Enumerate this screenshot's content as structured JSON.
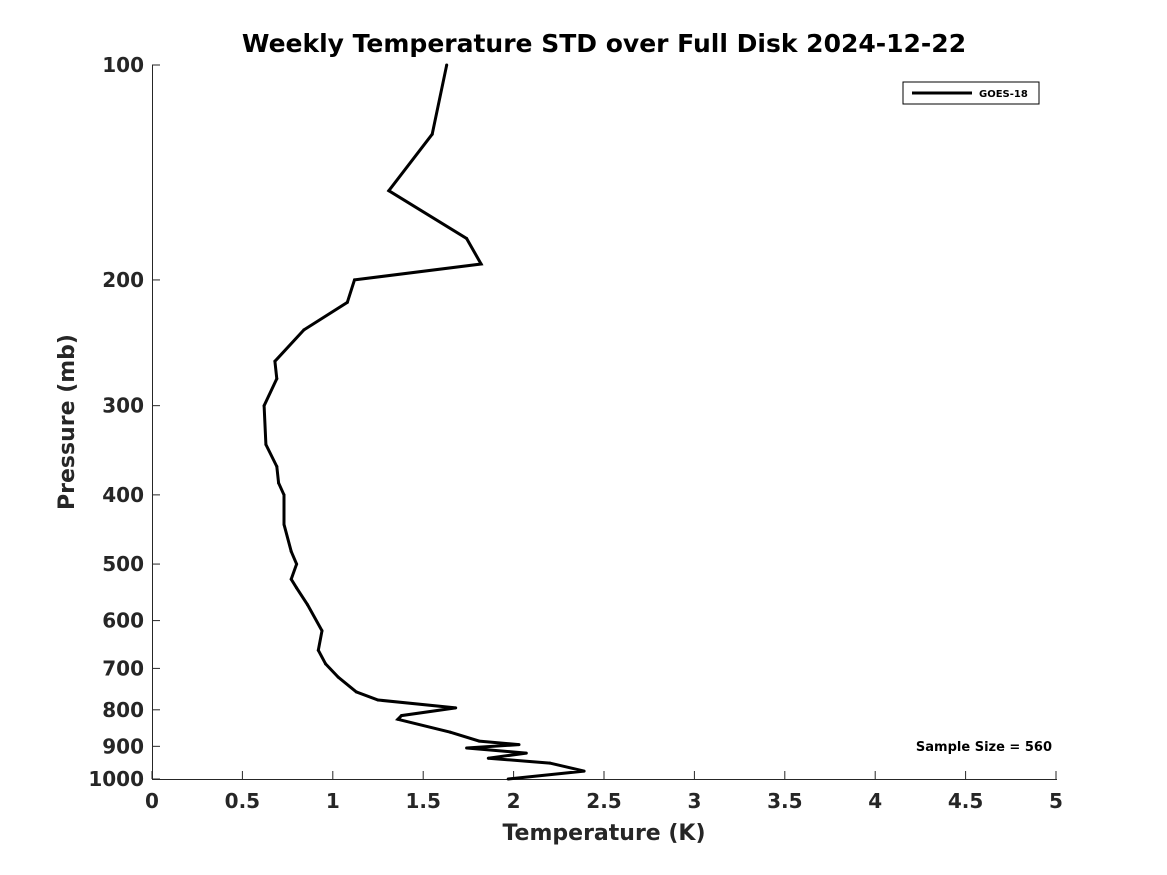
{
  "chart_data": {
    "type": "line",
    "title": "Weekly Temperature STD over Full Disk 2024-12-22",
    "xlabel": "Temperature (K)",
    "ylabel": "Pressure (mb)",
    "xlim": [
      0,
      5
    ],
    "ylim": [
      100,
      1000
    ],
    "y_scale": "log",
    "y_reversed": true,
    "xticks": [
      0,
      0.5,
      1,
      1.5,
      2,
      2.5,
      3,
      3.5,
      4,
      4.5,
      5
    ],
    "xtick_labels": [
      "0",
      "0.5",
      "1",
      "1.5",
      "2",
      "2.5",
      "3",
      "3.5",
      "4",
      "4.5",
      "5"
    ],
    "yticks": [
      100,
      200,
      300,
      400,
      500,
      600,
      700,
      800,
      900,
      1000
    ],
    "ytick_labels": [
      "100",
      "200",
      "300",
      "400",
      "500",
      "600",
      "700",
      "800",
      "900",
      "1000"
    ],
    "legend_position": "top-right",
    "grid": false,
    "annotation": "Sample Size = 560",
    "series": [
      {
        "name": "GOES-18",
        "color": "#000000",
        "points": [
          {
            "x": 1.63,
            "p": 100
          },
          {
            "x": 1.55,
            "p": 125
          },
          {
            "x": 1.31,
            "p": 150
          },
          {
            "x": 1.74,
            "p": 175
          },
          {
            "x": 1.82,
            "p": 190
          },
          {
            "x": 1.12,
            "p": 200
          },
          {
            "x": 1.08,
            "p": 215
          },
          {
            "x": 0.84,
            "p": 235
          },
          {
            "x": 0.68,
            "p": 260
          },
          {
            "x": 0.69,
            "p": 275
          },
          {
            "x": 0.62,
            "p": 300
          },
          {
            "x": 0.63,
            "p": 340
          },
          {
            "x": 0.69,
            "p": 365
          },
          {
            "x": 0.7,
            "p": 385
          },
          {
            "x": 0.73,
            "p": 400
          },
          {
            "x": 0.73,
            "p": 440
          },
          {
            "x": 0.77,
            "p": 480
          },
          {
            "x": 0.8,
            "p": 500
          },
          {
            "x": 0.77,
            "p": 525
          },
          {
            "x": 0.8,
            "p": 540
          },
          {
            "x": 0.86,
            "p": 570
          },
          {
            "x": 0.94,
            "p": 620
          },
          {
            "x": 0.92,
            "p": 660
          },
          {
            "x": 0.96,
            "p": 690
          },
          {
            "x": 1.03,
            "p": 720
          },
          {
            "x": 1.13,
            "p": 755
          },
          {
            "x": 1.25,
            "p": 775
          },
          {
            "x": 1.68,
            "p": 795
          },
          {
            "x": 1.38,
            "p": 815
          },
          {
            "x": 1.36,
            "p": 825
          },
          {
            "x": 1.65,
            "p": 860
          },
          {
            "x": 1.81,
            "p": 885
          },
          {
            "x": 2.03,
            "p": 895
          },
          {
            "x": 1.74,
            "p": 905
          },
          {
            "x": 2.07,
            "p": 920
          },
          {
            "x": 1.86,
            "p": 935
          },
          {
            "x": 2.2,
            "p": 950
          },
          {
            "x": 2.39,
            "p": 975
          },
          {
            "x": 1.97,
            "p": 1000
          }
        ]
      }
    ]
  }
}
